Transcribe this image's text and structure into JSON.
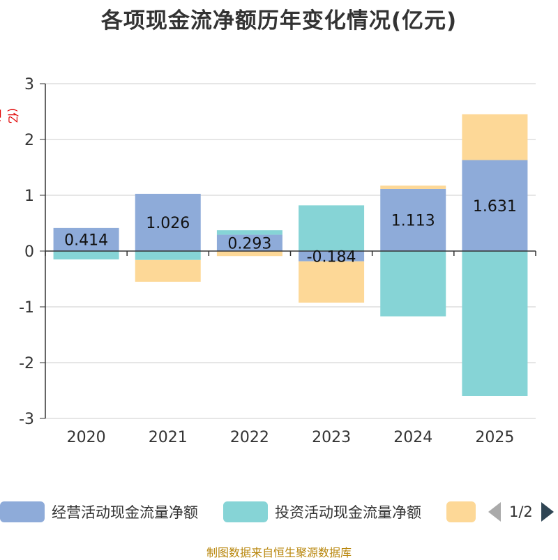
{
  "chart_data": {
    "type": "bar",
    "stacked": true,
    "title": "各项现金流净额历年变化情况(亿元)",
    "ylabel": "(亿元)",
    "categories": [
      "2020",
      "2021",
      "2022",
      "2023",
      "2024",
      "2025"
    ],
    "ylim": [
      -3,
      3
    ],
    "yticks": [
      3,
      2,
      1,
      0,
      -1,
      -2,
      -3
    ],
    "series": [
      {
        "name": "经营活动现金流量净额",
        "color": "#8eabd9",
        "values": [
          0.414,
          1.026,
          0.293,
          -0.184,
          1.113,
          1.631
        ],
        "labels": [
          "0.414",
          "1.026",
          "0.293",
          "-0.184",
          "1.113",
          "1.631"
        ]
      },
      {
        "name": "投资活动现金流量净额",
        "color": "#86d4d6",
        "values": [
          -0.15,
          -0.16,
          0.08,
          0.82,
          -1.17,
          -2.6
        ]
      },
      {
        "name": "",
        "color": "#fdd897",
        "values": [
          0.0,
          -0.39,
          -0.09,
          -0.74,
          0.06,
          0.82
        ]
      }
    ],
    "grid": true,
    "legend_position": "bottom"
  },
  "legend": {
    "items": [
      {
        "label": "经营活动现金流量净额",
        "color": "#8eabd9"
      },
      {
        "label": "投资活动现金流量净额",
        "color": "#86d4d6"
      },
      {
        "label": "",
        "color": "#fdd897"
      }
    ],
    "page": "1/2"
  },
  "source": "制图数据来自恒生聚源数据库"
}
